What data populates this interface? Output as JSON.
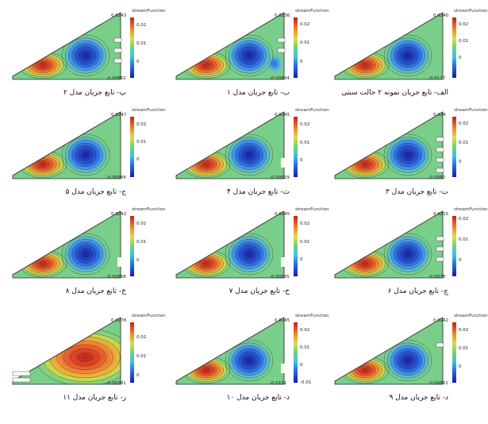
{
  "chart_data": [
    {
      "type": "heatmap",
      "caption": "الف- تابع جریان نمونه ۲ حالت سنتی",
      "legend_title": "streamFunction",
      "max": "0.0240",
      "min": "-0.0117",
      "ticks": [
        "0.02",
        "0.01",
        "0"
      ],
      "vortices": 2,
      "slots": 0,
      "gaps": 0
    },
    {
      "type": "heatmap",
      "caption": "ب- تابع جریان مدل ۱",
      "legend_title": "streamFunction",
      "max": "0.0236",
      "min": "-0.00834",
      "ticks": [
        "0.02",
        "0.01",
        "0"
      ],
      "vortices": 3,
      "slots": 2,
      "gaps": 0
    },
    {
      "type": "heatmap",
      "caption": "پ- تابع جریان مدل ۲",
      "legend_title": "streamFunction",
      "max": "0.0243",
      "min": "-0.00862",
      "ticks": [
        "0.02",
        "0.01",
        "0"
      ],
      "vortices": 2,
      "slots": 3,
      "gaps": 0
    },
    {
      "type": "heatmap",
      "caption": "ت- تابع جریان مدل ۳",
      "legend_title": "streamFunction",
      "max": "0.024",
      "min": "-0.0082",
      "ticks": [
        "0.02",
        "0.01",
        "0"
      ],
      "vortices": 2,
      "slots": 4,
      "gaps": 0
    },
    {
      "type": "heatmap",
      "caption": "ث- تابع جریان مدل ۴",
      "legend_title": "streamFunction",
      "max": "0.0245",
      "min": "-0.00929",
      "ticks": [
        "0.02",
        "0.01",
        "0"
      ],
      "vortices": 2,
      "slots": 0,
      "gaps": 1
    },
    {
      "type": "heatmap",
      "caption": "ج- تابع جریان مدل ۵",
      "legend_title": "streamFunction",
      "max": "0.0247",
      "min": "-0.00984",
      "ticks": [
        "0.02",
        "0.01",
        "0"
      ],
      "vortices": 2,
      "slots": 0,
      "gaps": 0
    },
    {
      "type": "heatmap",
      "caption": "چ- تابع جریان مدل ۶",
      "legend_title": "streamFunction",
      "max": "0.0215",
      "min": "-0.0078",
      "ticks": [
        "0.02",
        "0.01",
        "0"
      ],
      "vortices": 2,
      "slots": 3,
      "gaps": 0
    },
    {
      "type": "heatmap",
      "caption": "ح- تابع جریان مدل ۷",
      "legend_title": "streamFunction",
      "max": "0.0245",
      "min": "-0.00935",
      "ticks": [
        "0.02",
        "0.01",
        "0"
      ],
      "vortices": 2,
      "slots": 0,
      "gaps": 1
    },
    {
      "type": "heatmap",
      "caption": "خ- تابع جریان مدل ۸",
      "legend_title": "streamFunction",
      "max": "0.0242",
      "min": "-0.00868",
      "ticks": [
        "0.02",
        "0.01",
        "0"
      ],
      "vortices": 2,
      "slots": 0,
      "gaps": 1
    },
    {
      "type": "heatmap",
      "caption": "د- تابع جریان مدل ۹",
      "legend_title": "streamFunction",
      "max": "0.0242",
      "min": "-0.00861",
      "ticks": [
        "0.02",
        "0.01",
        "0"
      ],
      "vortices": 2,
      "slots": 1,
      "gaps": 0
    },
    {
      "type": "heatmap",
      "caption": "ذ- تابع جریان مدل ۱۰",
      "legend_title": "streamFunction",
      "max": "0.0245",
      "min": "-0.0101",
      "ticks": [
        "0.02",
        "0.01",
        "0",
        "-0.01"
      ],
      "vortices": 2,
      "slots": 0,
      "gaps": 1
    },
    {
      "type": "heatmap",
      "caption": "ر- تابع جریان مدل ۱۱",
      "legend_title": "streamFunction",
      "max": "0.0278",
      "min": "-0.00381",
      "ticks": [
        "0.02",
        "0.01",
        "0"
      ],
      "vortices": 1,
      "slots": 2,
      "gaps": 0
    }
  ]
}
